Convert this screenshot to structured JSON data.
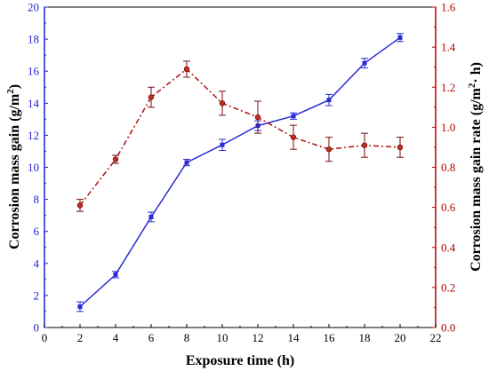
{
  "chart_data": {
    "type": "line",
    "xlabel": "Exposure time (h)",
    "ylabel_left_text": "Corrosion mass gain (g/m",
    "ylabel_left_sup": "2",
    "ylabel_left_close": ")",
    "ylabel_right_text": "Corrosion mass gain rate (g/m",
    "ylabel_right_sup": "2",
    "ylabel_right_close": "· h)",
    "xlim": [
      0,
      22
    ],
    "ylim_left": [
      0,
      20
    ],
    "ylim_right": [
      0.0,
      1.6
    ],
    "x_ticks": [
      "0",
      "2",
      "4",
      "6",
      "8",
      "10",
      "12",
      "14",
      "16",
      "18",
      "20",
      "22"
    ],
    "y_left_ticks": [
      "0",
      "2",
      "4",
      "6",
      "8",
      "10",
      "12",
      "14",
      "16",
      "18",
      "20"
    ],
    "y_right_ticks": [
      "0.0",
      "0.2",
      "0.4",
      "0.6",
      "0.8",
      "1.0",
      "1.2",
      "1.4",
      "1.6"
    ],
    "colors": {
      "left_axis": "#1f1fcc",
      "right_axis": "#b00000",
      "mass_line": "#2a2ad6",
      "rate_line": "#b01010",
      "frame": "#000000"
    },
    "series": [
      {
        "axis": "left",
        "style": "solid-line-square-markers",
        "x": [
          2,
          4,
          6,
          8,
          10,
          12,
          14,
          16,
          18,
          20
        ],
        "values": [
          1.3,
          3.3,
          6.9,
          10.3,
          11.4,
          12.6,
          13.2,
          14.2,
          16.5,
          18.1
        ],
        "errors": [
          0.3,
          0.2,
          0.3,
          0.2,
          0.35,
          0.3,
          0.2,
          0.35,
          0.3,
          0.25
        ]
      },
      {
        "axis": "right",
        "style": "dash-dot-line-circle-markers",
        "x": [
          2,
          4,
          6,
          8,
          10,
          12,
          14,
          16,
          18,
          20
        ],
        "values": [
          0.61,
          0.84,
          1.15,
          1.29,
          1.12,
          1.05,
          0.95,
          0.89,
          0.91,
          0.9
        ],
        "errors": [
          0.03,
          0.02,
          0.05,
          0.04,
          0.06,
          0.08,
          0.06,
          0.06,
          0.06,
          0.05
        ]
      }
    ]
  }
}
